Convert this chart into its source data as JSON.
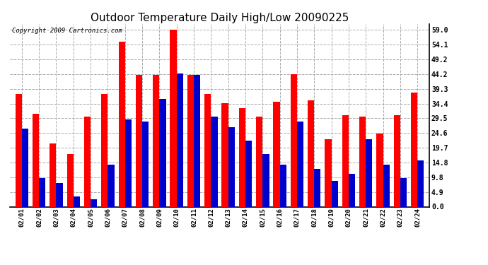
{
  "title": "Outdoor Temperature Daily High/Low 20090225",
  "copyright": "Copyright 2009 Cartronics.com",
  "dates": [
    "02/01",
    "02/02",
    "02/03",
    "02/04",
    "02/05",
    "02/06",
    "02/07",
    "02/08",
    "02/09",
    "02/10",
    "02/11",
    "02/12",
    "02/13",
    "02/14",
    "02/15",
    "02/16",
    "02/17",
    "02/18",
    "02/19",
    "02/20",
    "02/21",
    "02/22",
    "02/23",
    "02/24"
  ],
  "highs": [
    37.5,
    31.0,
    21.0,
    17.5,
    30.0,
    37.5,
    55.0,
    44.0,
    44.0,
    59.0,
    44.0,
    37.5,
    34.5,
    33.0,
    30.0,
    35.0,
    44.2,
    35.5,
    22.5,
    30.5,
    30.0,
    24.5,
    30.5,
    38.0
  ],
  "lows": [
    26.0,
    9.5,
    8.0,
    3.5,
    2.5,
    14.0,
    29.0,
    28.5,
    36.0,
    44.5,
    44.0,
    30.0,
    26.5,
    22.0,
    17.5,
    14.0,
    28.5,
    12.5,
    8.5,
    11.0,
    22.5,
    14.0,
    9.5,
    15.5
  ],
  "high_color": "#ff0000",
  "low_color": "#0000cc",
  "bg_color": "#ffffff",
  "plot_bg": "#ffffff",
  "grid_color": "#aaaaaa",
  "yticks": [
    0.0,
    4.9,
    9.8,
    14.8,
    19.7,
    24.6,
    29.5,
    34.4,
    39.3,
    44.2,
    49.2,
    54.1,
    59.0
  ],
  "ylim": [
    0,
    61
  ],
  "title_fontsize": 11,
  "copyright_fontsize": 6.5,
  "bar_width": 0.38
}
